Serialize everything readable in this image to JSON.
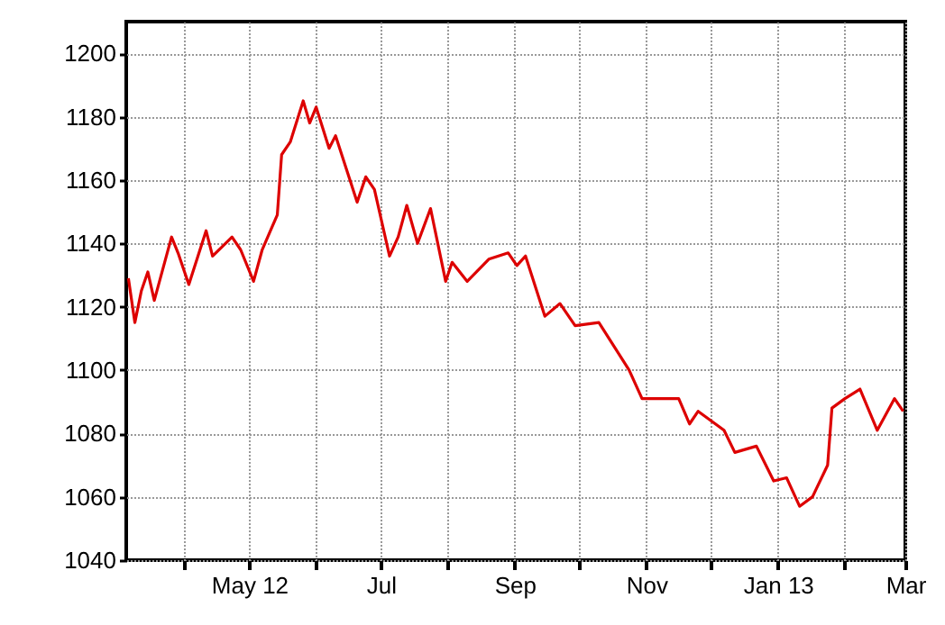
{
  "chart_data": {
    "type": "line",
    "x": [
      "2012-03-06",
      "2012-03-09",
      "2012-03-12",
      "2012-03-15",
      "2012-03-18",
      "2012-03-26",
      "2012-03-29",
      "2012-04-03",
      "2012-04-11",
      "2012-04-14",
      "2012-04-23",
      "2012-04-27",
      "2012-05-03",
      "2012-05-07",
      "2012-05-14",
      "2012-05-16",
      "2012-05-20",
      "2012-05-26",
      "2012-05-29",
      "2012-06-01",
      "2012-06-07",
      "2012-06-10",
      "2012-06-20",
      "2012-06-24",
      "2012-06-28",
      "2012-07-05",
      "2012-07-09",
      "2012-07-13",
      "2012-07-18",
      "2012-07-24",
      "2012-07-31",
      "2012-08-03",
      "2012-08-10",
      "2012-08-20",
      "2012-08-29",
      "2012-09-02",
      "2012-09-06",
      "2012-09-15",
      "2012-09-22",
      "2012-09-29",
      "2012-10-10",
      "2012-10-24",
      "2012-10-30",
      "2012-11-16",
      "2012-11-21",
      "2012-11-25",
      "2012-12-07",
      "2012-12-12",
      "2012-12-22",
      "2012-12-30",
      "2013-01-05",
      "2013-01-11",
      "2013-01-17",
      "2013-01-24",
      "2013-01-26",
      "2013-02-01",
      "2013-02-08",
      "2013-02-16",
      "2013-02-24",
      "2013-02-28"
    ],
    "series": [
      {
        "color": "#dd0000",
        "values": [
          1129,
          1115,
          1125,
          1131,
          1122,
          1142,
          1137,
          1127,
          1144,
          1136,
          1142,
          1138,
          1128,
          1138,
          1149,
          1168,
          1172,
          1185,
          1178,
          1183,
          1170,
          1174,
          1153,
          1161,
          1157,
          1136,
          1142,
          1152,
          1140,
          1151,
          1128,
          1134,
          1128,
          1135,
          1137,
          1133,
          1136,
          1117,
          1121,
          1114,
          1115,
          1100,
          1091,
          1091,
          1083,
          1087,
          1081,
          1074,
          1076,
          1065,
          1066,
          1057,
          1060,
          1070,
          1088,
          1091,
          1094,
          1081,
          1091,
          1087
        ]
      }
    ],
    "xlim": [
      "2012-03-05",
      "2013-03-01"
    ],
    "xticks": [
      {
        "value": "2012-04-01",
        "label": null
      },
      {
        "value": "2012-05-01",
        "label": "May 12"
      },
      {
        "value": "2012-06-01",
        "label": null
      },
      {
        "value": "2012-07-01",
        "label": "Jul"
      },
      {
        "value": "2012-08-01",
        "label": null
      },
      {
        "value": "2012-09-01",
        "label": "Sep"
      },
      {
        "value": "2012-10-01",
        "label": null
      },
      {
        "value": "2012-11-01",
        "label": "Nov"
      },
      {
        "value": "2012-12-01",
        "label": null
      },
      {
        "value": "2013-01-01",
        "label": "Jan 13"
      },
      {
        "value": "2013-02-01",
        "label": null
      },
      {
        "value": "2013-03-01",
        "label": "Mar"
      }
    ],
    "ylim": [
      1040,
      1210
    ],
    "yticks": [
      1040,
      1060,
      1080,
      1100,
      1120,
      1140,
      1160,
      1180,
      1200
    ],
    "grid": true,
    "line_style": "solid",
    "marker": "none"
  }
}
